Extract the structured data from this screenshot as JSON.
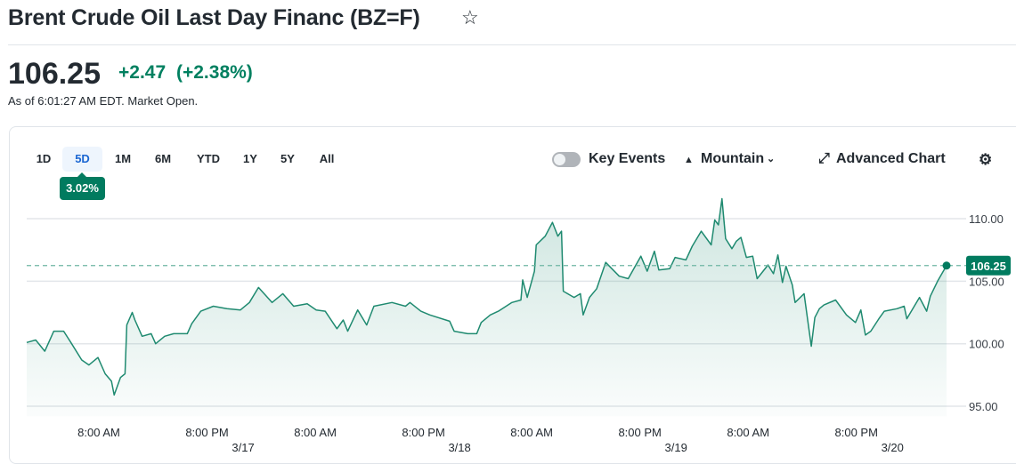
{
  "header": {
    "title": "Brent Crude Oil Last Day Financ (BZ=F)",
    "star_icon": "☆"
  },
  "quote": {
    "price": "106.25",
    "change": "+2.47",
    "change_pct": "(+2.38%)",
    "as_of": "As of 6:01:27 AM EDT. Market Open."
  },
  "ranges": [
    "1D",
    "5D",
    "1M",
    "6M",
    "YTD",
    "1Y",
    "5Y",
    "All"
  ],
  "active_range": "5D",
  "range_change": "3.02%",
  "controls": {
    "key_events": "Key Events",
    "chart_type": "Mountain",
    "advanced": "Advanced Chart"
  },
  "colors": {
    "line": "#1f8a70",
    "accent": "#017b5f",
    "active_tab": "#1a66d2"
  },
  "chart_data": {
    "type": "area",
    "x_unit": "hours since 3/16 00:00",
    "xlim": [
      0,
      102
    ],
    "ylim": [
      94.2,
      112.8
    ],
    "yticks": [
      {
        "v": 110,
        "label": "110.00"
      },
      {
        "v": 105,
        "label": "105.00"
      },
      {
        "v": 100,
        "label": "100.00"
      },
      {
        "v": 95,
        "label": "95.00"
      }
    ],
    "xticks": [
      {
        "v": 8,
        "label": "8:00 AM"
      },
      {
        "v": 20,
        "label": "8:00 PM"
      },
      {
        "v": 32,
        "label": "8:00 AM"
      },
      {
        "v": 44,
        "label": "8:00 PM"
      },
      {
        "v": 56,
        "label": "8:00 AM"
      },
      {
        "v": 68,
        "label": "8:00 PM"
      },
      {
        "v": 80,
        "label": "8:00 AM"
      },
      {
        "v": 92,
        "label": "8:00 PM"
      }
    ],
    "date_ticks": [
      {
        "v": 24,
        "label": "3/17"
      },
      {
        "v": 48,
        "label": "3/18"
      },
      {
        "v": 72,
        "label": "3/19"
      },
      {
        "v": 96,
        "label": "3/20"
      }
    ],
    "last_price": {
      "v": 106.25,
      "label": "106.25"
    },
    "points": [
      [
        0,
        100.1
      ],
      [
        1,
        100.3
      ],
      [
        2,
        99.4
      ],
      [
        3,
        101.0
      ],
      [
        4.1,
        101.0
      ],
      [
        4.9,
        100.1
      ],
      [
        6.1,
        98.7
      ],
      [
        6.9,
        98.3
      ],
      [
        7.9,
        98.9
      ],
      [
        8.7,
        97.6
      ],
      [
        9.4,
        97.0
      ],
      [
        9.7,
        95.9
      ],
      [
        10.4,
        97.3
      ],
      [
        10.9,
        97.6
      ],
      [
        11.1,
        101.5
      ],
      [
        11.7,
        102.5
      ],
      [
        12,
        101.9
      ],
      [
        12.8,
        100.6
      ],
      [
        13.8,
        100.8
      ],
      [
        14.3,
        100.0
      ],
      [
        15.3,
        100.6
      ],
      [
        16.3,
        100.8
      ],
      [
        17.8,
        100.8
      ],
      [
        18.3,
        101.6
      ],
      [
        19.3,
        102.6
      ],
      [
        20.7,
        103.0
      ],
      [
        22.2,
        102.8
      ],
      [
        23.7,
        102.7
      ],
      [
        24.7,
        103.3
      ],
      [
        25.7,
        104.5
      ],
      [
        27.2,
        103.3
      ],
      [
        28.4,
        104.0
      ],
      [
        29.6,
        103.0
      ],
      [
        31.1,
        103.2
      ],
      [
        32.1,
        102.7
      ],
      [
        33.1,
        102.6
      ],
      [
        34.4,
        101.2
      ],
      [
        35.1,
        101.9
      ],
      [
        35.6,
        101.0
      ],
      [
        36.7,
        102.7
      ],
      [
        37.7,
        101.5
      ],
      [
        38.5,
        103.0
      ],
      [
        40.5,
        103.3
      ],
      [
        42,
        103.0
      ],
      [
        42.5,
        103.3
      ],
      [
        43.7,
        102.6
      ],
      [
        44.7,
        102.3
      ],
      [
        46.9,
        101.8
      ],
      [
        47.4,
        101.0
      ],
      [
        48.9,
        100.8
      ],
      [
        49.9,
        100.8
      ],
      [
        50.4,
        101.7
      ],
      [
        51.4,
        102.3
      ],
      [
        52.3,
        102.6
      ],
      [
        53.8,
        103.3
      ],
      [
        54.8,
        103.5
      ],
      [
        55,
        105.1
      ],
      [
        55.5,
        103.7
      ],
      [
        56.3,
        105.8
      ],
      [
        56.5,
        107.9
      ],
      [
        57.5,
        108.6
      ],
      [
        58.3,
        109.7
      ],
      [
        58.9,
        108.6
      ],
      [
        59.3,
        109.0
      ],
      [
        59.5,
        104.2
      ],
      [
        60.7,
        103.7
      ],
      [
        61.4,
        104.0
      ],
      [
        61.7,
        102.3
      ],
      [
        62.4,
        103.7
      ],
      [
        63.2,
        104.4
      ],
      [
        64.2,
        106.5
      ],
      [
        65.7,
        105.4
      ],
      [
        66.7,
        105.2
      ],
      [
        68.1,
        107.0
      ],
      [
        68.8,
        105.8
      ],
      [
        69.6,
        107.4
      ],
      [
        70.1,
        105.9
      ],
      [
        71.3,
        106.0
      ],
      [
        71.9,
        106.9
      ],
      [
        73.1,
        106.7
      ],
      [
        73.8,
        107.8
      ],
      [
        74.8,
        109.0
      ],
      [
        75.9,
        107.9
      ],
      [
        76.3,
        109.9
      ],
      [
        76.7,
        109.5
      ],
      [
        77.1,
        111.6
      ],
      [
        77.5,
        108.4
      ],
      [
        78.2,
        107.6
      ],
      [
        78.7,
        108.2
      ],
      [
        79.2,
        108.5
      ],
      [
        79.8,
        106.9
      ],
      [
        80.5,
        107.0
      ],
      [
        81,
        105.2
      ],
      [
        82.2,
        106.3
      ],
      [
        82.8,
        105.6
      ],
      [
        83.3,
        107.1
      ],
      [
        83.8,
        104.9
      ],
      [
        84.2,
        106.2
      ],
      [
        84.9,
        104.7
      ],
      [
        85.2,
        103.3
      ],
      [
        86.2,
        104.0
      ],
      [
        87,
        99.8
      ],
      [
        87.4,
        102.1
      ],
      [
        87.9,
        102.8
      ],
      [
        88.4,
        103.1
      ],
      [
        89.7,
        103.5
      ],
      [
        90.9,
        102.3
      ],
      [
        91.9,
        101.7
      ],
      [
        92.5,
        102.7
      ],
      [
        93,
        100.7
      ],
      [
        93.6,
        101.0
      ],
      [
        94.5,
        102.0
      ],
      [
        95.1,
        102.6
      ],
      [
        96.5,
        102.8
      ],
      [
        97.3,
        103.0
      ],
      [
        97.6,
        102.0
      ],
      [
        99,
        103.7
      ],
      [
        99.8,
        102.6
      ],
      [
        100.2,
        103.8
      ],
      [
        101,
        105.0
      ],
      [
        102,
        106.25
      ]
    ]
  }
}
